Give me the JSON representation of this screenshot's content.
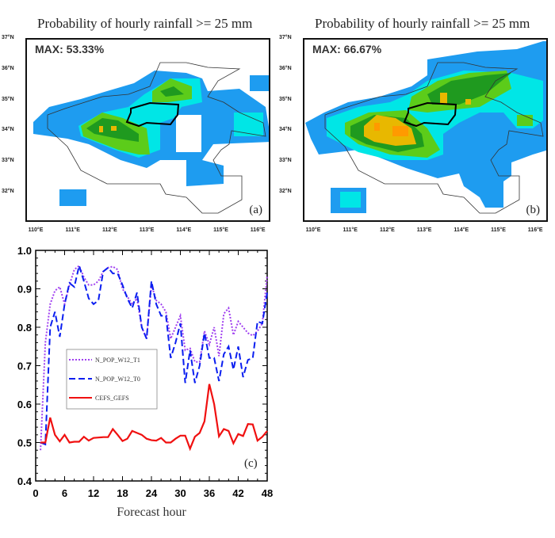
{
  "maps": [
    {
      "title": "Probability of hourly rainfall >= 25 mm",
      "max_label": "MAX: 53.33%",
      "panel": "(a)"
    },
    {
      "title": "Probability of hourly rainfall >= 25 mm",
      "max_label": "MAX: 66.67%",
      "panel": "(b)"
    }
  ],
  "map_axes": {
    "lat_labels": [
      "37°N",
      "36°N",
      "35°N",
      "34°N",
      "33°N",
      "32°N"
    ],
    "lon_labels": [
      "110°E",
      "111°E",
      "112°E",
      "113°E",
      "114°E",
      "115°E",
      "116°E"
    ]
  },
  "colors": {
    "blue": "#1e9cf0",
    "cyan": "#00e6e6",
    "green": "#5ccc1a",
    "dark_green": "#1f9a1f",
    "yellow": "#e8b800",
    "orange": "#ff9a00"
  },
  "chart_data": {
    "type": "line",
    "xlabel": "Forecast hour",
    "ylabel": "",
    "panel": "(c)",
    "xlim": [
      0,
      48
    ],
    "ylim": [
      0.4,
      1.0
    ],
    "xticks": [
      "0",
      "6",
      "12",
      "18",
      "24",
      "30",
      "36",
      "42",
      "48"
    ],
    "yticks": [
      "0.4",
      "0.5",
      "0.6",
      "0.7",
      "0.8",
      "0.9",
      "1.0"
    ],
    "legend_position": "center-left",
    "x": [
      1,
      2,
      3,
      4,
      5,
      6,
      7,
      8,
      9,
      10,
      11,
      12,
      13,
      14,
      15,
      16,
      17,
      18,
      19,
      20,
      21,
      22,
      23,
      24,
      25,
      26,
      27,
      28,
      29,
      30,
      31,
      32,
      33,
      34,
      35,
      36,
      37,
      38,
      39,
      40,
      41,
      42,
      43,
      44,
      45,
      46,
      47,
      48
    ],
    "series": [
      {
        "name": "N_POP_W12_T1",
        "color": "#a040f0",
        "style": "dotted",
        "values": [
          0.48,
          0.76,
          0.86,
          0.895,
          0.905,
          0.86,
          0.91,
          0.95,
          0.96,
          0.93,
          0.91,
          0.91,
          0.92,
          0.945,
          0.955,
          0.958,
          0.95,
          0.9,
          0.88,
          0.86,
          0.875,
          0.8,
          0.77,
          0.91,
          0.87,
          0.86,
          0.84,
          0.77,
          0.8,
          0.83,
          0.74,
          0.745,
          0.71,
          0.71,
          0.79,
          0.755,
          0.8,
          0.725,
          0.835,
          0.85,
          0.78,
          0.815,
          0.8,
          0.785,
          0.778,
          0.79,
          0.81,
          0.935
        ]
      },
      {
        "name": "N_POP_W12_T0",
        "color": "#0a1ef0",
        "style": "dashed",
        "values": [
          0.5,
          0.495,
          0.8,
          0.84,
          0.775,
          0.86,
          0.915,
          0.905,
          0.96,
          0.92,
          0.875,
          0.86,
          0.87,
          0.945,
          0.955,
          0.94,
          0.94,
          0.91,
          0.875,
          0.85,
          0.89,
          0.8,
          0.77,
          0.92,
          0.86,
          0.83,
          0.83,
          0.72,
          0.76,
          0.81,
          0.655,
          0.74,
          0.655,
          0.7,
          0.785,
          0.72,
          0.72,
          0.66,
          0.73,
          0.75,
          0.69,
          0.75,
          0.67,
          0.715,
          0.72,
          0.815,
          0.81,
          0.89
        ]
      },
      {
        "name": "CEFS_GEFS",
        "color": "#f01010",
        "style": "solid",
        "values": [
          0.5,
          0.5,
          0.565,
          0.52,
          0.503,
          0.52,
          0.5,
          0.502,
          0.502,
          0.515,
          0.505,
          0.512,
          0.513,
          0.514,
          0.514,
          0.535,
          0.52,
          0.504,
          0.51,
          0.53,
          0.525,
          0.52,
          0.51,
          0.506,
          0.505,
          0.512,
          0.5,
          0.5,
          0.51,
          0.518,
          0.518,
          0.484,
          0.515,
          0.525,
          0.555,
          0.652,
          0.6,
          0.516,
          0.535,
          0.53,
          0.498,
          0.522,
          0.517,
          0.548,
          0.547,
          0.505,
          0.515,
          0.53
        ]
      }
    ]
  }
}
